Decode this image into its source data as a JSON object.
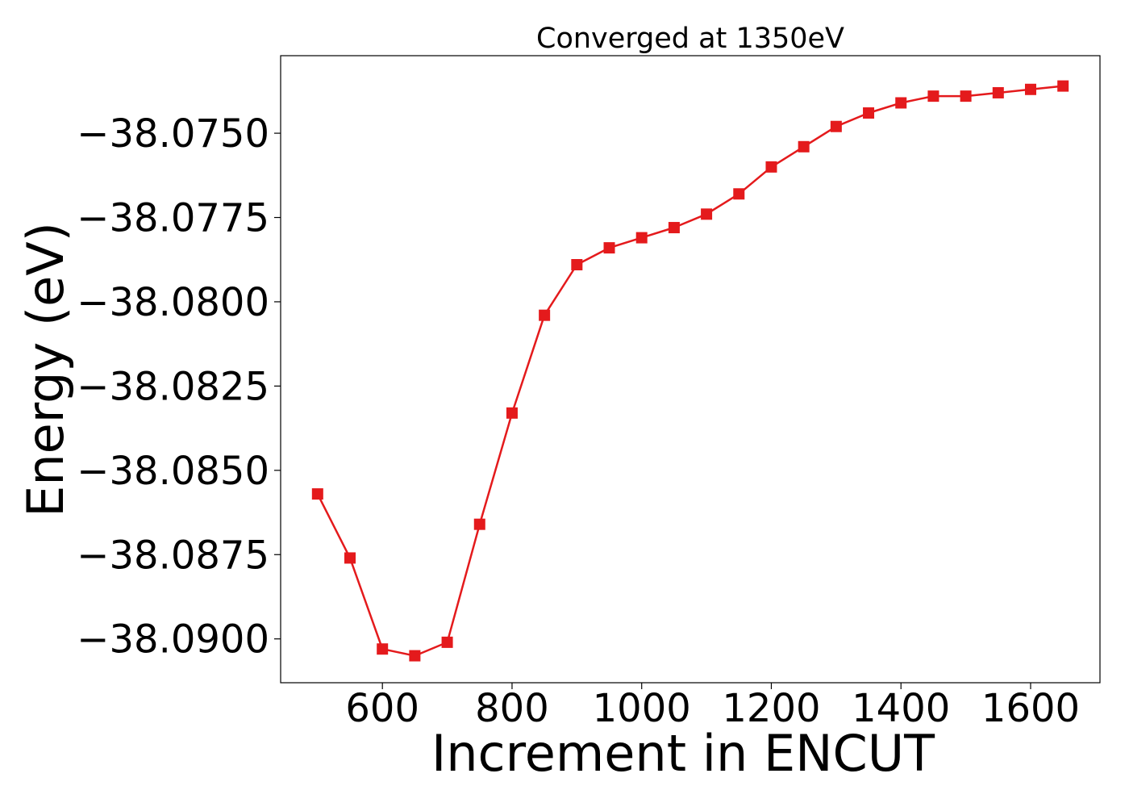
{
  "chart_data": {
    "type": "line",
    "title": "Converged at 1350eV",
    "xlabel": "Increment in ENCUT",
    "ylabel": "Energy (eV)",
    "x": [
      500,
      550,
      600,
      650,
      700,
      750,
      800,
      850,
      900,
      950,
      1000,
      1050,
      1100,
      1150,
      1200,
      1250,
      1300,
      1350,
      1400,
      1450,
      1500,
      1550,
      1600,
      1650
    ],
    "series": [
      {
        "values": [
          -38.0857,
          -38.0876,
          -38.0903,
          -38.0905,
          -38.0901,
          -38.0866,
          -38.0833,
          -38.0804,
          -38.0789,
          -38.0784,
          -38.0781,
          -38.0778,
          -38.0774,
          -38.0768,
          -38.076,
          -38.0754,
          -38.0748,
          -38.0744,
          -38.0741,
          -38.0739,
          -38.0739,
          -38.0738,
          -38.0737,
          -38.0736
        ],
        "color": "#e41a1c",
        "marker": "square"
      }
    ],
    "xlim": [
      443,
      1707
    ],
    "ylim": [
      -38.0913,
      -38.0727
    ],
    "xticks": [
      600,
      800,
      1000,
      1200,
      1400,
      1600
    ],
    "xtick_labels": [
      "600",
      "800",
      "1000",
      "1200",
      "1400",
      "1600"
    ],
    "yticks": [
      -38.075,
      -38.0775,
      -38.08,
      -38.0825,
      -38.085,
      -38.0875,
      -38.09
    ],
    "ytick_labels": [
      "−38.0750",
      "−38.0775",
      "−38.0800",
      "−38.0825",
      "−38.0850",
      "−38.0875",
      "−38.0900"
    ],
    "grid": false,
    "legend": false
  }
}
